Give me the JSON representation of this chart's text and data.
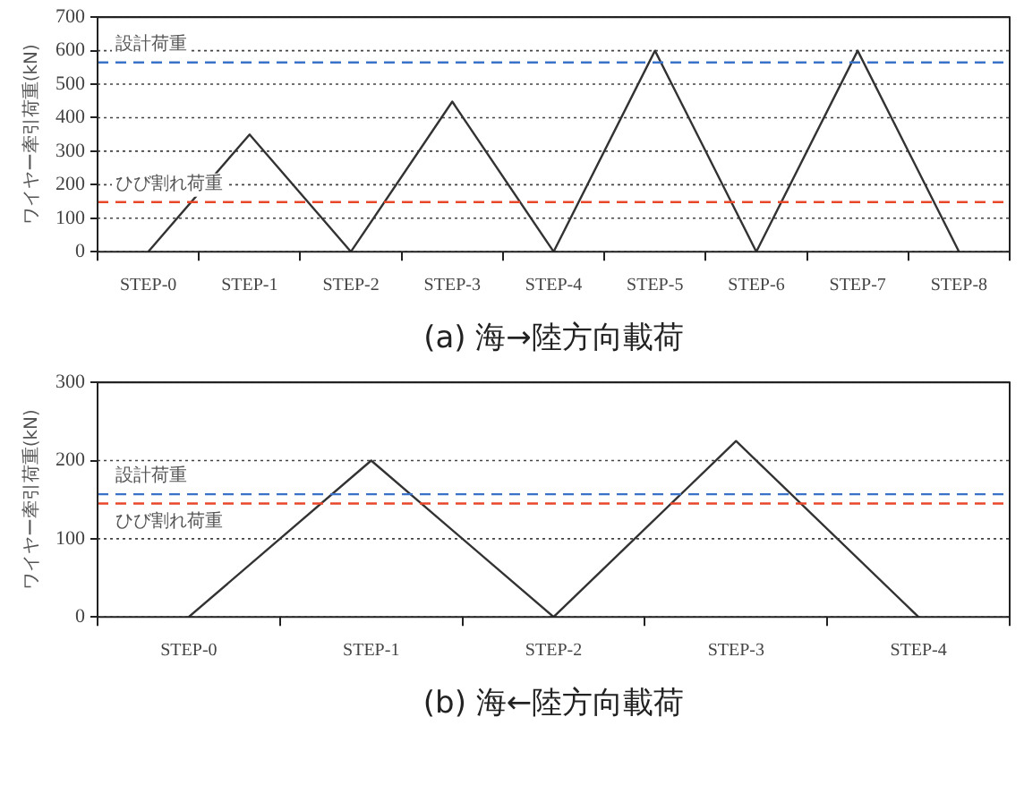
{
  "chart_data": [
    {
      "type": "line",
      "xlabel": "(a) 海→陸方向載荷",
      "ylabel": "ワイヤー牽引荷重(kN)",
      "categories": [
        "STEP-0",
        "STEP-1",
        "STEP-2",
        "STEP-3",
        "STEP-4",
        "STEP-5",
        "STEP-6",
        "STEP-7",
        "STEP-8"
      ],
      "series": [
        {
          "color": "#333333",
          "values": [
            0,
            350,
            0,
            448,
            0,
            600,
            0,
            600,
            0
          ]
        }
      ],
      "ylim": [
        0,
        700
      ],
      "yticks": [
        0,
        100,
        200,
        300,
        400,
        500,
        600,
        700
      ],
      "ref_lines": [
        {
          "axis": "y",
          "value": 565,
          "label": "設計荷重",
          "color": "#3a72c8",
          "line_style": "dashed"
        },
        {
          "axis": "y",
          "value": 148,
          "label": "ひび割れ荷重",
          "color": "#e8472a",
          "line_style": "dashed"
        }
      ],
      "grid": "y",
      "legend": false,
      "marker": "none",
      "line_style": "solid"
    },
    {
      "type": "line",
      "xlabel": "(b) 海←陸方向載荷",
      "ylabel": "ワイヤー牽引荷重(kN)",
      "categories": [
        "STEP-0",
        "STEP-1",
        "STEP-2",
        "STEP-3",
        "STEP-4"
      ],
      "series": [
        {
          "color": "#333333",
          "values": [
            0,
            200,
            0,
            225,
            0
          ]
        }
      ],
      "ylim": [
        0,
        300
      ],
      "yticks": [
        0,
        100,
        200,
        300
      ],
      "ref_lines": [
        {
          "axis": "y",
          "value": 157,
          "label": "設計荷重",
          "color": "#3a72c8",
          "line_style": "dashed"
        },
        {
          "axis": "y",
          "value": 145,
          "label": "ひび割れ荷重",
          "color": "#e8472a",
          "line_style": "dashed"
        }
      ],
      "grid": "y",
      "legend": false,
      "marker": "none",
      "line_style": "solid"
    }
  ]
}
